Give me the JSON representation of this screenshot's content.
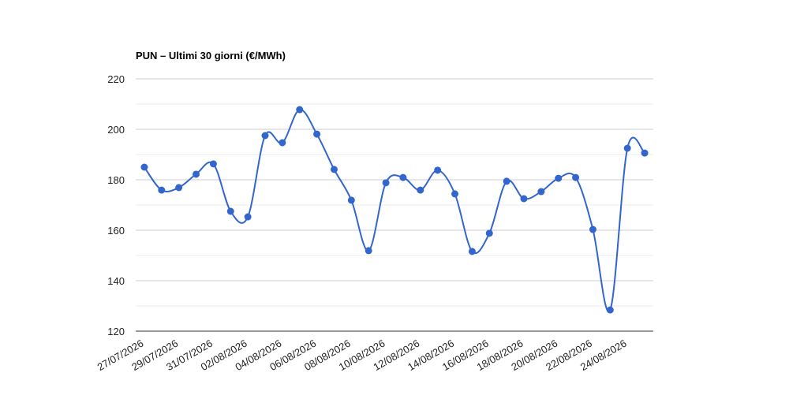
{
  "chart_data": {
    "type": "line",
    "title": "PUN – Ultimi 30 giorni (€/MWh)",
    "categories": [
      "27/07/2026",
      null,
      "29/07/2026",
      null,
      "31/07/2026",
      null,
      "02/08/2026",
      null,
      "04/08/2026",
      null,
      "06/08/2026",
      null,
      "08/08/2026",
      null,
      "10/08/2026",
      null,
      "12/08/2026",
      null,
      "14/08/2026",
      null,
      "16/08/2026",
      null,
      "18/08/2026",
      null,
      "20/08/2026",
      null,
      "22/08/2026",
      null,
      "24/08/2026",
      null
    ],
    "series": [
      {
        "color": "#3366cc",
        "values": [
          185.0,
          175.9,
          176.9,
          182.2,
          186.3,
          167.5,
          165.3,
          197.5,
          194.7,
          207.8,
          198.1,
          184.1,
          171.9,
          151.9,
          178.8,
          180.9,
          175.9,
          183.8,
          174.4,
          151.6,
          158.8,
          179.4,
          172.5,
          175.3,
          180.6,
          180.9,
          160.3,
          128.4,
          192.5,
          190.6
        ]
      }
    ],
    "ylim": [
      120,
      220
    ],
    "yticks": [
      120,
      140,
      160,
      180,
      200,
      220
    ],
    "minor_yticks": [
      130,
      150,
      170,
      190,
      210
    ],
    "grid": true
  }
}
